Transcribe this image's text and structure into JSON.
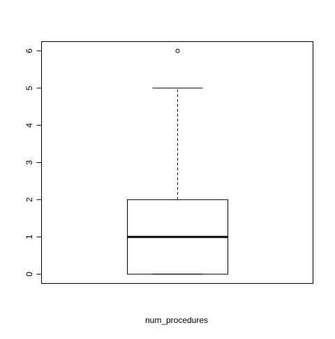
{
  "chart_data": {
    "type": "boxplot",
    "title": "",
    "xlabel": "num_procedures",
    "ylabel": "",
    "ylim": [
      -0.25,
      6.25
    ],
    "yticks": [
      "0",
      "1",
      "2",
      "3",
      "4",
      "5",
      "6"
    ],
    "series": [
      {
        "box": {
          "min": 0,
          "q1": 0,
          "median": 1,
          "q3": 2,
          "max": 5
        },
        "outliers": [
          6
        ]
      }
    ],
    "grid": false,
    "legend": "none"
  }
}
